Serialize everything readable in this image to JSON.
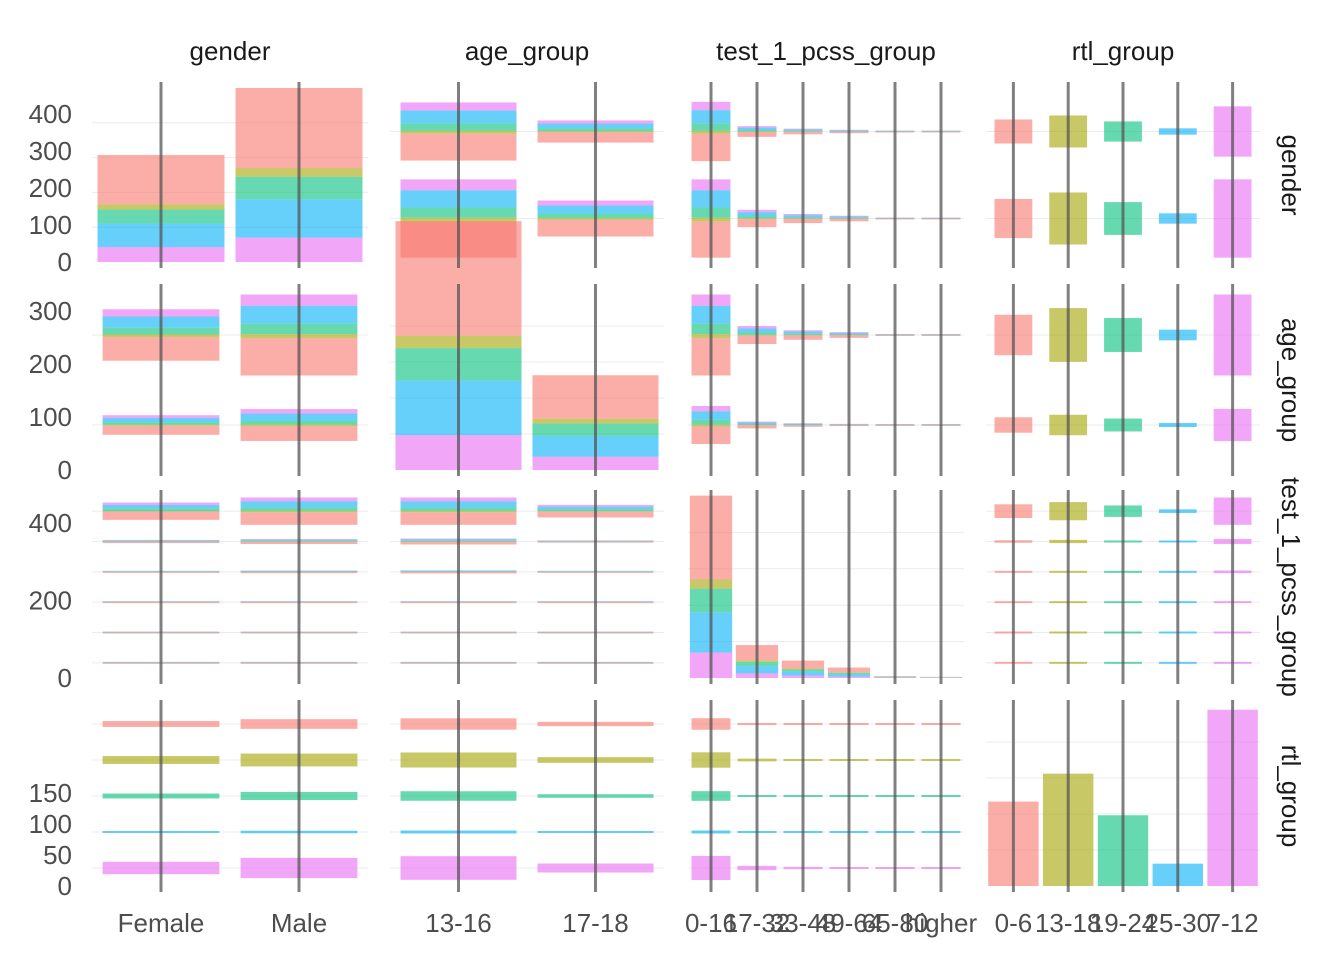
{
  "chart_data": {
    "type": "bar",
    "title": "",
    "subtitle": "",
    "layout": "pairs-matrix",
    "variables": [
      "gender",
      "age_group",
      "test_1_pcss_group",
      "rtl_group"
    ],
    "column_strip_labels": [
      "gender",
      "age_group",
      "test_1_pcss_group",
      "rtl_group"
    ],
    "row_strip_labels": [
      "gender",
      "age_group",
      "test_1_pcss_group",
      "rtl_group"
    ],
    "levels": {
      "gender": [
        "Female",
        "Male"
      ],
      "age_group": [
        "13-16",
        "17-18"
      ],
      "test_1_pcss_group": [
        "0-16",
        "17-32",
        "33-48",
        "49-64",
        "65-80",
        "higher"
      ],
      "rtl_group": [
        "0-6",
        "13-18",
        "19-24",
        "25-30",
        "7-12"
      ]
    },
    "x_tick_labels": {
      "gender": [
        "Female",
        "Male"
      ],
      "age_group": [
        "13-16",
        "17-18"
      ],
      "test_1_pcss_group": [
        "0-16",
        "17-32",
        "33-48",
        "49-64",
        "65-80",
        "higher"
      ],
      "rtl_group": [
        "0-6",
        "13-18",
        "19-24",
        "25-30",
        "7-12"
      ]
    },
    "fill_variable": "rtl_group",
    "fill_colors": {
      "0-6": "#F8766D",
      "13-18": "#A3A500",
      "19-24": "#00BF7D",
      "25-30": "#00B0F6",
      "7-12": "#E76BF3"
    },
    "fill_opacity": 0.6,
    "marginals": {
      "gender": {
        "Female": 289,
        "Male": 470
      },
      "age_group": {
        "13-16": 470,
        "17-18": 179
      },
      "test_1_pcss_group": {
        "0-16": 471,
        "17-32": 85,
        "33-48": 45,
        "49-64": 27,
        "65-80": 5,
        "higher": 3
      },
      "rtl_group": {
        "0-6": 136,
        "13-18": 181,
        "19-24": 114,
        "25-30": 36,
        "7-12": 284
      }
    },
    "y_axis": {
      "gender_row": {
        "ticks": [
          0,
          100,
          200,
          300,
          400
        ],
        "ylim": [
          0,
          470
        ]
      },
      "age_group_row": {
        "ticks": [
          0,
          100,
          200,
          300
        ],
        "ylim": [
          0,
          340
        ]
      },
      "test_1_pcss_group_row": {
        "ticks": [
          0,
          200,
          400
        ],
        "ylim": [
          0,
          470
        ]
      },
      "rtl_group_row": {
        "ticks": [
          0,
          50,
          100,
          150
        ],
        "ylim": [
          0,
          290
        ]
      }
    },
    "grid": true,
    "legend": "none"
  }
}
